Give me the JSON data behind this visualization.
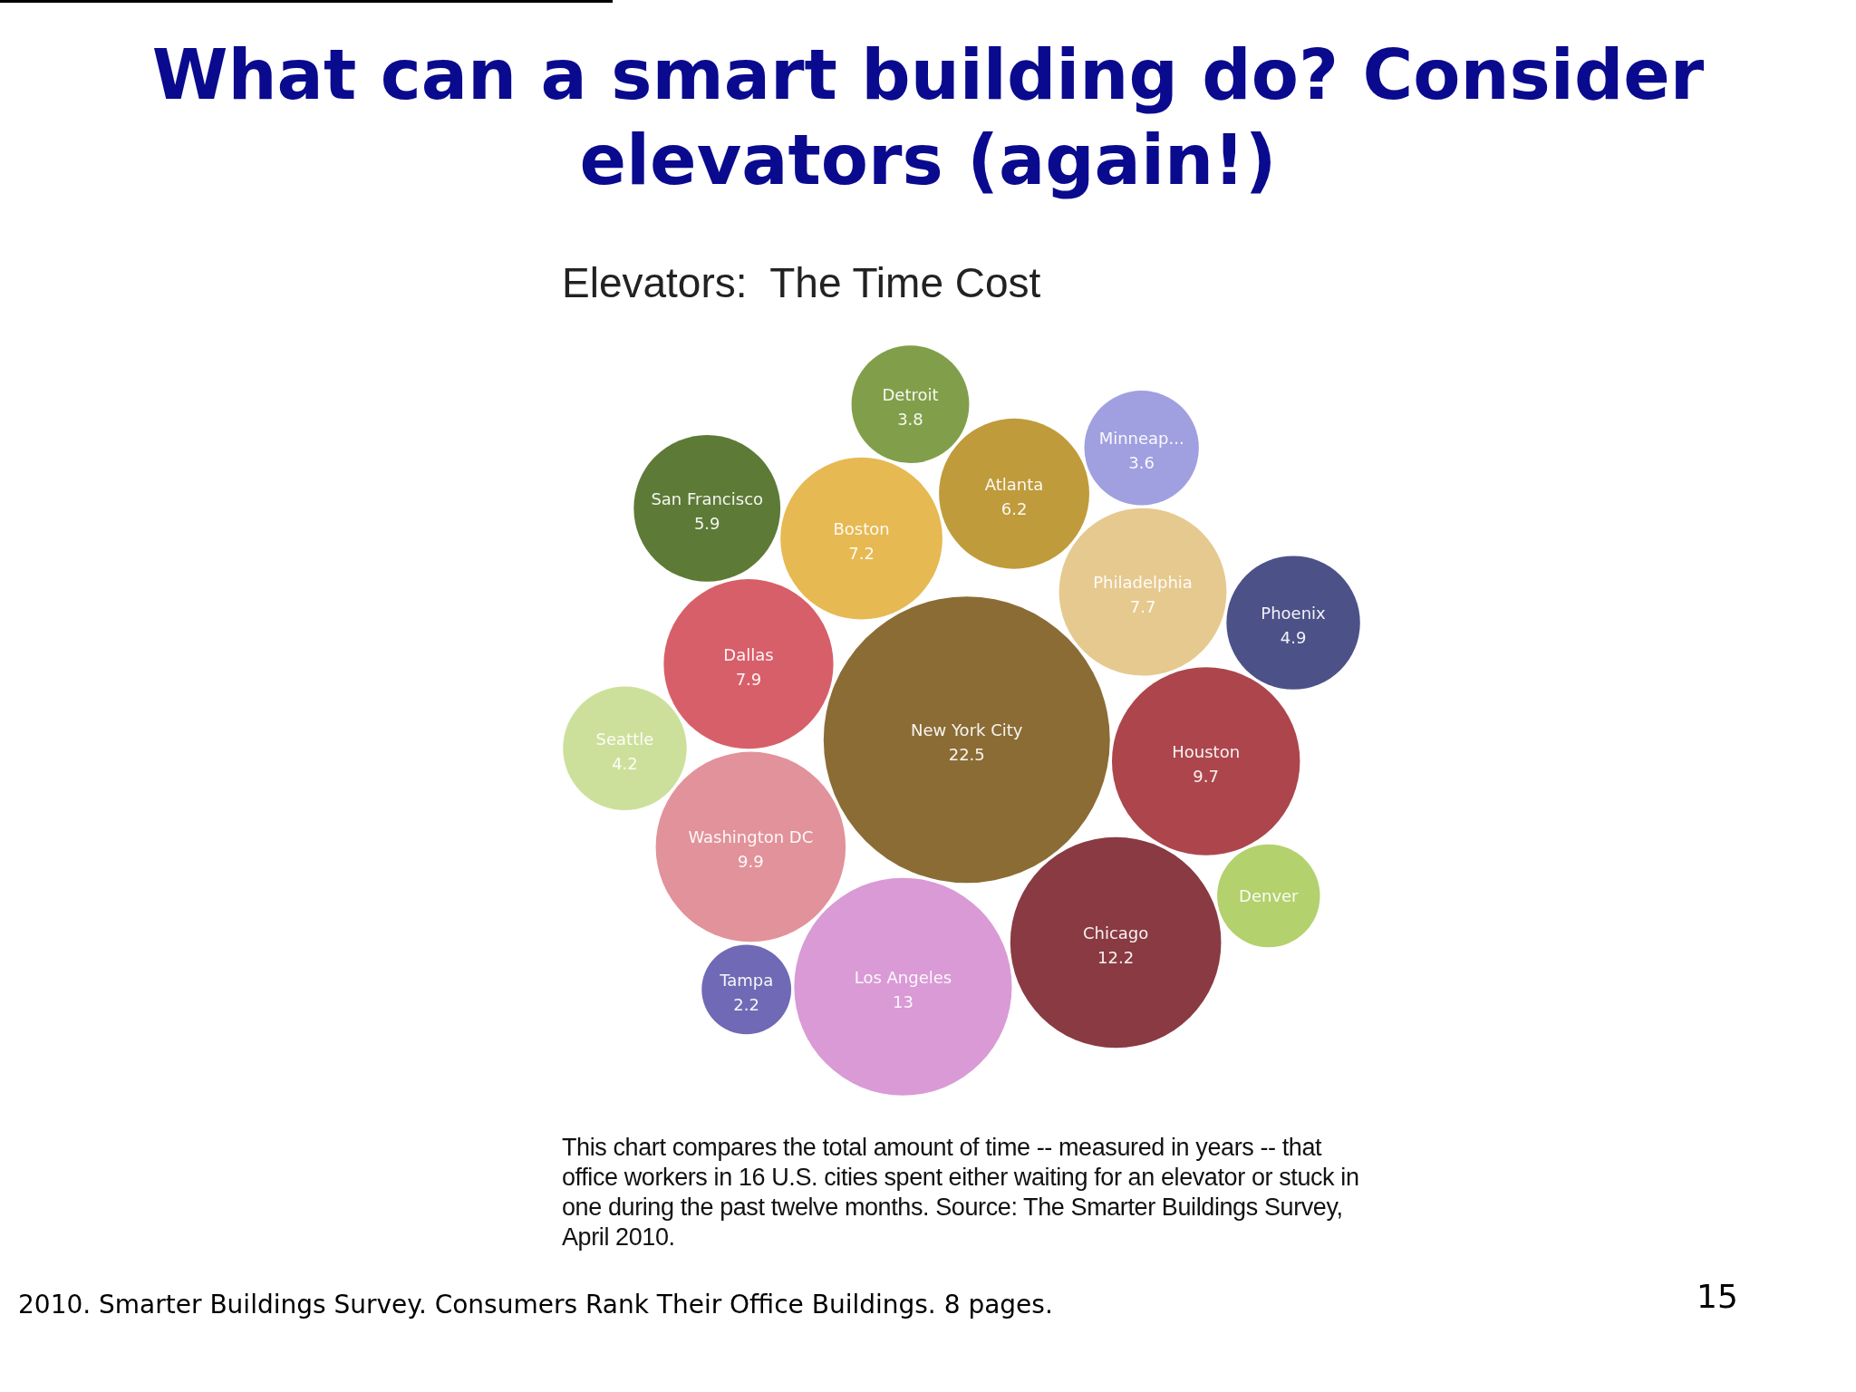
{
  "chart_data": {
    "type": "other",
    "title": "What can a smart building do? Consider elevators (again!)",
    "subtitle": "Elevators:  The Time Cost",
    "categories": [
      "New York City",
      "Los Angeles",
      "Chicago",
      "Washington DC",
      "Houston",
      "Dallas",
      "Philadelphia",
      "Boston",
      "Atlanta",
      "San Francisco",
      "Phoenix",
      "Seattle",
      "Detroit",
      "Minneap...",
      "Denver",
      "Tampa"
    ],
    "values": [
      22.5,
      13,
      12.2,
      9.9,
      9.7,
      7.9,
      7.7,
      7.2,
      6.2,
      5.9,
      4.9,
      4.2,
      3.8,
      3.6,
      null,
      2.2
    ],
    "data_labels": true,
    "colors": [
      "#8b6c35",
      "#d99ad6",
      "#8a3a42",
      "#e2929a",
      "#ac464c",
      "#d75f69",
      "#e6c98f",
      "#e6b952",
      "#bf9b3b",
      "#5e7a37",
      "#4c5188",
      "#cde09b",
      "#819f4a",
      "#a09fe0",
      "#b3d16c",
      "#7069b5"
    ],
    "annotations": [
      "This chart compares the total amount of time -- measured in years -- that office workers in 16 U.S. cities spent either waiting for an elevator or stuck in one during the past twelve months. Source: The Smarter Buildings Survey, April 2010.",
      "2010. Smarter Buildings Survey. Consumers Rank Their Office Buildings. 8 pages.",
      "15"
    ]
  }
}
